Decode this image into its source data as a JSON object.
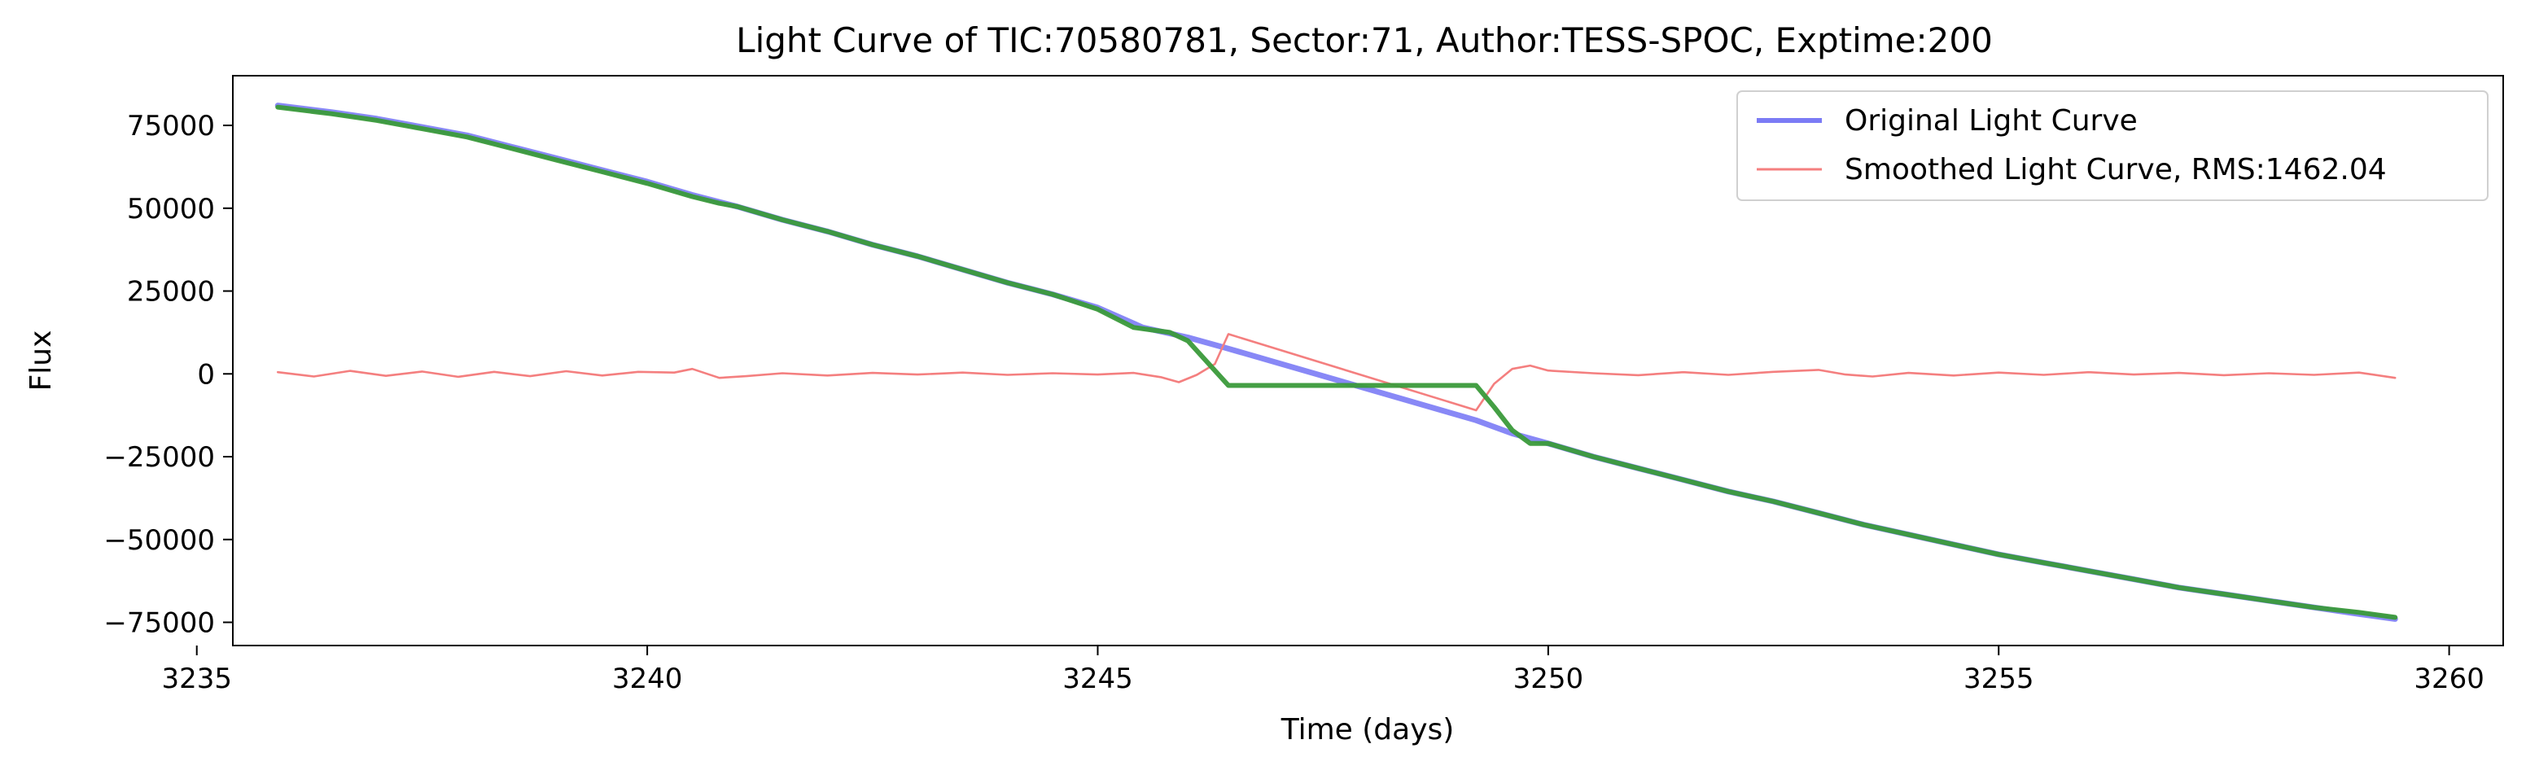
{
  "chart_data": {
    "type": "line",
    "title": "Light Curve of TIC:70580781, Sector:71, Author:TESS-SPOC, Exptime:200",
    "xlabel": "Time (days)",
    "ylabel": "Flux",
    "xlim": [
      3235.4,
      3260.6
    ],
    "ylim": [
      -82000,
      90000
    ],
    "xticks": [
      3235,
      3240,
      3245,
      3250,
      3255,
      3260
    ],
    "yticks": [
      75000,
      50000,
      25000,
      0,
      -25000,
      -50000,
      -75000
    ],
    "grid": false,
    "legend_position": "top-right",
    "legend": [
      {
        "label": "Original Light Curve",
        "color": "#7b7bf5"
      },
      {
        "label": "Smoothed Light Curve, RMS:1462.04",
        "color": "#f47f7f"
      }
    ],
    "series": [
      {
        "name": "Original Light Curve",
        "color": "#7b7bf5",
        "x": [
          3235.9,
          3236.5,
          3237.0,
          3237.5,
          3238.0,
          3238.5,
          3239.0,
          3239.5,
          3240.0,
          3240.5,
          3241.0,
          3241.5,
          3242.0,
          3242.5,
          3243.0,
          3243.5,
          3244.0,
          3244.5,
          3245.0,
          3245.5,
          3246.0,
          3246.4,
          3249.2,
          3249.6,
          3250.0,
          3250.5,
          3251.0,
          3251.5,
          3252.0,
          3252.5,
          3253.0,
          3253.5,
          3254.0,
          3254.5,
          3255.0,
          3255.5,
          3256.0,
          3256.5,
          3257.0,
          3257.5,
          3258.0,
          3258.5,
          3259.0,
          3259.4
        ],
        "y": [
          81000,
          79000,
          77000,
          74500,
          72000,
          68500,
          65000,
          61500,
          58000,
          54000,
          50500,
          46500,
          43000,
          39000,
          35500,
          31500,
          27500,
          24000,
          20000,
          14000,
          11000,
          8000,
          -14000,
          -18000,
          -21000,
          -25000,
          -28500,
          -32000,
          -35500,
          -38500,
          -42000,
          -45500,
          -48500,
          -51500,
          -54500,
          -57000,
          -59500,
          -62000,
          -64500,
          -66500,
          -68500,
          -70500,
          -72500,
          -74000
        ]
      },
      {
        "name": "Smoothed Light Curve, RMS:1462.04",
        "color": "#f47f7f",
        "x": [
          3235.9,
          3236.3,
          3236.7,
          3237.1,
          3237.5,
          3237.9,
          3238.3,
          3238.7,
          3239.1,
          3239.5,
          3239.9,
          3240.3,
          3240.5,
          3240.8,
          3241.1,
          3241.5,
          3242.0,
          3242.5,
          3243.0,
          3243.5,
          3244.0,
          3244.5,
          3245.0,
          3245.4,
          3245.7,
          3245.9,
          3246.1,
          3246.3,
          3246.45,
          3249.2,
          3249.4,
          3249.6,
          3249.8,
          3250.0,
          3250.5,
          3251.0,
          3251.5,
          3252.0,
          3252.5,
          3253.0,
          3253.3,
          3253.6,
          3254.0,
          3254.5,
          3255.0,
          3255.5,
          3256.0,
          3256.5,
          3257.0,
          3257.5,
          3258.0,
          3258.5,
          3259.0,
          3259.4
        ],
        "y": [
          500,
          -800,
          900,
          -600,
          700,
          -900,
          600,
          -700,
          800,
          -500,
          600,
          400,
          1500,
          -1200,
          -700,
          200,
          -500,
          300,
          -200,
          400,
          -300,
          200,
          -200,
          300,
          -1000,
          -2500,
          -300,
          3000,
          12000,
          -11000,
          -3000,
          1500,
          2500,
          1000,
          200,
          -400,
          500,
          -300,
          600,
          1200,
          -200,
          -800,
          300,
          -500,
          400,
          -300,
          500,
          -200,
          300,
          -400,
          200,
          -300,
          400,
          -1200
        ]
      },
      {
        "name": "",
        "color": "#3a9a3a",
        "x": [
          3235.9,
          3236.5,
          3237.0,
          3237.5,
          3238.0,
          3238.5,
          3239.0,
          3239.5,
          3240.0,
          3240.5,
          3240.8,
          3241.0,
          3241.5,
          3242.0,
          3242.5,
          3243.0,
          3243.5,
          3244.0,
          3244.5,
          3245.0,
          3245.4,
          3245.8,
          3246.0,
          3246.2,
          3246.45,
          3249.2,
          3249.4,
          3249.6,
          3249.8,
          3250.0,
          3250.5,
          3251.0,
          3251.5,
          3252.0,
          3252.5,
          3253.0,
          3253.5,
          3254.0,
          3254.5,
          3255.0,
          3255.5,
          3256.0,
          3256.5,
          3257.0,
          3257.5,
          3258.0,
          3258.5,
          3259.0,
          3259.4
        ],
        "y": [
          80500,
          78500,
          76500,
          74000,
          71500,
          68000,
          64500,
          61000,
          57500,
          53500,
          51500,
          50500,
          46500,
          43000,
          39000,
          35500,
          31500,
          27500,
          24000,
          19500,
          14000,
          12500,
          10000,
          4000,
          -3500,
          -3500,
          -10000,
          -17000,
          -21000,
          -21000,
          -25000,
          -28500,
          -32000,
          -35500,
          -38500,
          -42000,
          -45500,
          -48500,
          -51500,
          -54500,
          -57000,
          -59500,
          -62000,
          -64500,
          -66500,
          -68500,
          -70500,
          -72000,
          -73500
        ]
      }
    ]
  }
}
